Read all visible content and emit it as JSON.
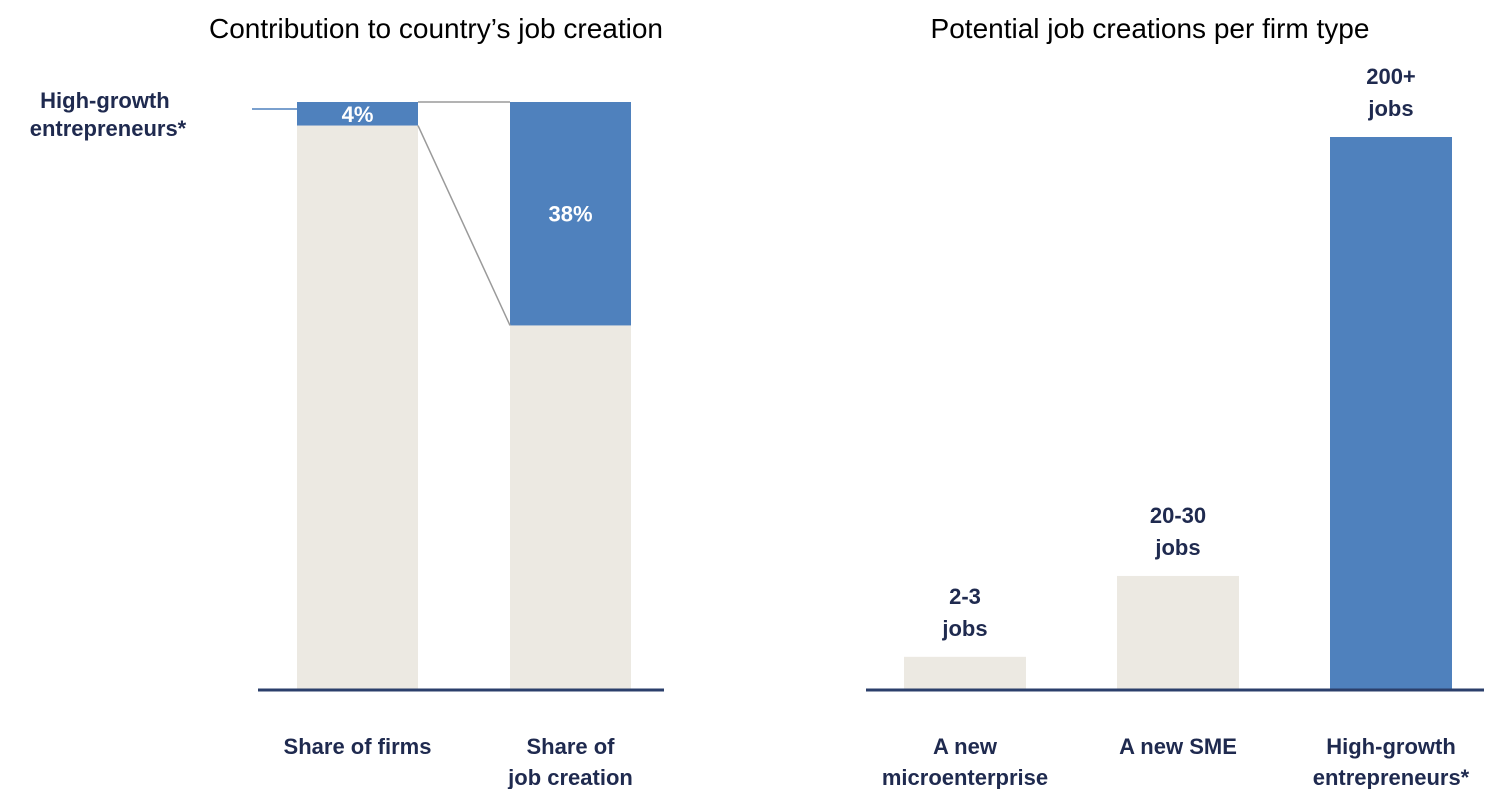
{
  "colors": {
    "highlight": "#4f81bd",
    "base": "#ece9e2",
    "axis": "#2b3f6b",
    "label_text": "#1f2a4f",
    "connector": "#9a9a9a"
  },
  "chart_data": [
    {
      "type": "bar",
      "stacked": true,
      "title": "Contribution to country’s job creation",
      "categories": [
        "Share of firms",
        "Share of job creation"
      ],
      "series": [
        {
          "name": "High-growth entrepreneurs*",
          "values": [
            4,
            38
          ],
          "labels": [
            "4%",
            "38%"
          ],
          "color": "#4f81bd"
        },
        {
          "values": [
            96,
            62
          ],
          "color": "#ece9e2"
        }
      ],
      "ylim": [
        0,
        100
      ]
    },
    {
      "type": "bar",
      "title": "Potential job creations per firm type",
      "categories": [
        "A new microenterprise",
        "A new SME",
        "High-growth entrepreneurs*"
      ],
      "values": [
        2.5,
        25,
        200
      ],
      "value_labels": [
        "2-3 jobs",
        "20-30 jobs",
        "200+ jobs"
      ],
      "highlight_index": 2,
      "ylim": [
        0,
        200
      ]
    }
  ]
}
